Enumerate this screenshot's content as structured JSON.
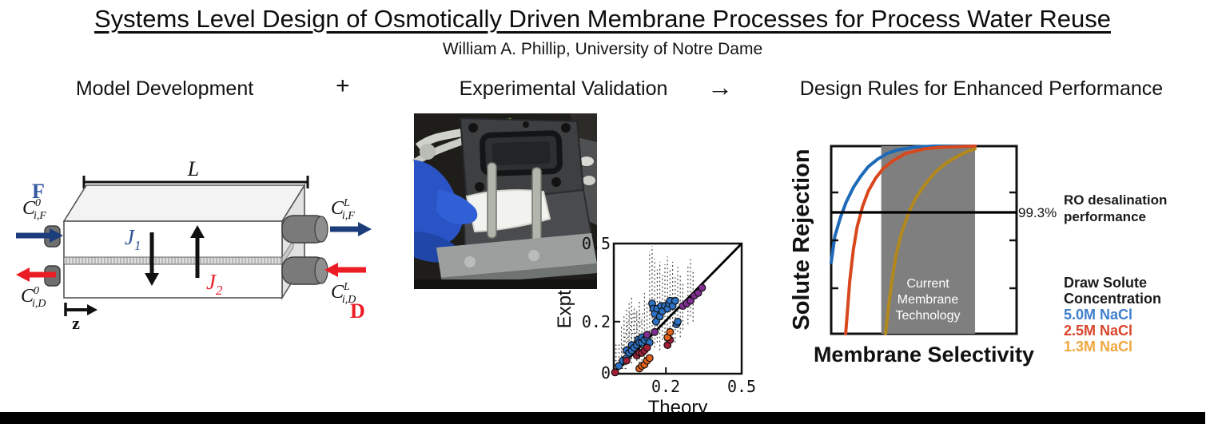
{
  "header": {
    "title": "Systems Level Design of Osmotically Driven Membrane Processes for Process Water Reuse",
    "subtitle": "William A. Phillip, University of Notre Dame"
  },
  "sections": {
    "model": "Model Development",
    "plus": "+",
    "experimental": "Experimental Validation",
    "arrow": "→",
    "design": "Design Rules for Enhanced Performance"
  },
  "module_diagram": {
    "length_label": "L",
    "feed_stream_label": "F",
    "draw_stream_label": "D",
    "axis_label": "z",
    "labels": {
      "feed_in": {
        "base": "C",
        "sup": "0",
        "sub": "i,F"
      },
      "feed_out": {
        "base": "C",
        "sup": "L",
        "sub": "i,F"
      },
      "draw_out": {
        "base": "C",
        "sup": "0",
        "sub": "i,D"
      },
      "draw_in": {
        "base": "C",
        "sup": "L",
        "sub": "i,D"
      },
      "water_flux": {
        "base": "J",
        "sub": "1"
      },
      "solute_flux": {
        "base": "J",
        "sub": "2"
      }
    },
    "colors": {
      "feed_arrow": "#1c3d7c",
      "draw_arrow": "#ec1c24",
      "feed_text": "#34579f",
      "flux1_text": "#2f5597",
      "flux2_text": "#e8232c"
    }
  },
  "photo": {
    "colors": {
      "glove": "#2a54c6",
      "cell_block": "#3e3f41",
      "base_plate": "#9ba09f",
      "membrane_sheet": "#f2f3ee"
    }
  },
  "chart_data": [
    {
      "id": "parity_plot",
      "type": "scatter",
      "title": "",
      "xlabel": "Theory",
      "ylabel": "Expt.",
      "xlim": [
        0,
        0.5
      ],
      "ylim": [
        0,
        0.5
      ],
      "xtick_labels": [
        "0.2",
        "0.5"
      ],
      "ytick_labels": [
        "0",
        "0.2",
        "0.5"
      ],
      "xticks": [
        0.2,
        0.5
      ],
      "yticks": [
        0,
        0.2,
        0.5
      ],
      "diagonal": true,
      "grid": false,
      "series": [
        {
          "name": "series-blue",
          "color": "#2d72c5",
          "points": [
            [
              0.02,
              0.03
            ],
            [
              0.035,
              0.05
            ],
            [
              0.05,
              0.06
            ],
            [
              0.05,
              0.09
            ],
            [
              0.06,
              0.08
            ],
            [
              0.07,
              0.09
            ],
            [
              0.07,
              0.11
            ],
            [
              0.08,
              0.1
            ],
            [
              0.09,
              0.11
            ],
            [
              0.095,
              0.13
            ],
            [
              0.1,
              0.12
            ],
            [
              0.11,
              0.12
            ],
            [
              0.11,
              0.14
            ],
            [
              0.12,
              0.13
            ],
            [
              0.13,
              0.14
            ],
            [
              0.14,
              0.12
            ],
            [
              0.15,
              0.27
            ],
            [
              0.155,
              0.25
            ],
            [
              0.16,
              0.23
            ],
            [
              0.165,
              0.2
            ],
            [
              0.17,
              0.25
            ],
            [
              0.18,
              0.22
            ],
            [
              0.185,
              0.26
            ],
            [
              0.19,
              0.24
            ],
            [
              0.2,
              0.26
            ],
            [
              0.21,
              0.25
            ],
            [
              0.215,
              0.27
            ],
            [
              0.22,
              0.28
            ],
            [
              0.23,
              0.26
            ],
            [
              0.24,
              0.28
            ],
            [
              0.245,
              0.19
            ],
            [
              0.25,
              0.2
            ]
          ]
        },
        {
          "name": "series-purple",
          "color": "#7f2d90",
          "points": [
            [
              0.13,
              0.15
            ],
            [
              0.16,
              0.16
            ],
            [
              0.27,
              0.26
            ],
            [
              0.285,
              0.27
            ],
            [
              0.3,
              0.28
            ],
            [
              0.315,
              0.3
            ],
            [
              0.33,
              0.31
            ],
            [
              0.345,
              0.33
            ]
          ]
        },
        {
          "name": "series-darkred",
          "color": "#a31f38",
          "points": [
            [
              0.005,
              0.005
            ],
            [
              0.05,
              0.05
            ],
            [
              0.09,
              0.07
            ],
            [
              0.1,
              0.08
            ],
            [
              0.11,
              0.08
            ],
            [
              0.12,
              0.09
            ],
            [
              0.13,
              0.1
            ],
            [
              0.21,
              0.11
            ],
            [
              0.22,
              0.13
            ]
          ]
        },
        {
          "name": "series-orange",
          "color": "#e2621b",
          "points": [
            [
              0.1,
              0.02
            ],
            [
              0.11,
              0.03
            ],
            [
              0.12,
              0.035
            ],
            [
              0.13,
              0.05
            ],
            [
              0.14,
              0.06
            ],
            [
              0.21,
              0.14
            ],
            [
              0.22,
              0.16
            ]
          ]
        }
      ],
      "error_bars": {
        "color": "#4a4a4a",
        "v_segments": [
          [
            0.03,
            0.02,
            0.18
          ],
          [
            0.04,
            0.03,
            0.22
          ],
          [
            0.05,
            0.04,
            0.25
          ],
          [
            0.06,
            0.05,
            0.28
          ],
          [
            0.07,
            0.04,
            0.3
          ],
          [
            0.08,
            0.06,
            0.26
          ],
          [
            0.09,
            0.05,
            0.24
          ],
          [
            0.1,
            0.04,
            0.28
          ],
          [
            0.11,
            0.05,
            0.22
          ],
          [
            0.12,
            0.06,
            0.31
          ],
          [
            0.13,
            0.05,
            0.27
          ],
          [
            0.14,
            0.1,
            0.47
          ],
          [
            0.15,
            0.12,
            0.49
          ],
          [
            0.16,
            0.1,
            0.44
          ],
          [
            0.17,
            0.12,
            0.4
          ],
          [
            0.18,
            0.09,
            0.43
          ],
          [
            0.19,
            0.13,
            0.38
          ],
          [
            0.2,
            0.11,
            0.42
          ],
          [
            0.21,
            0.14,
            0.45
          ],
          [
            0.22,
            0.1,
            0.4
          ],
          [
            0.23,
            0.15,
            0.43
          ],
          [
            0.24,
            0.12,
            0.37
          ],
          [
            0.25,
            0.16,
            0.41
          ],
          [
            0.26,
            0.14,
            0.38
          ],
          [
            0.27,
            0.17,
            0.35
          ],
          [
            0.29,
            0.19,
            0.42
          ],
          [
            0.3,
            0.22,
            0.44
          ],
          [
            0.31,
            0.2,
            0.4
          ]
        ],
        "h_segments": [
          [
            0.005,
            0.05,
            0.02
          ],
          [
            0.005,
            0.05,
            0.035
          ],
          [
            0.005,
            0.05,
            0.05
          ],
          [
            0.005,
            0.05,
            0.065
          ],
          [
            0.005,
            0.045,
            0.08
          ],
          [
            0.005,
            0.045,
            0.095
          ],
          [
            0.005,
            0.04,
            0.11
          ],
          [
            0.04,
            0.095,
            0.125
          ],
          [
            0.04,
            0.095,
            0.14
          ],
          [
            0.045,
            0.1,
            0.155
          ],
          [
            0.05,
            0.1,
            0.17
          ],
          [
            0.05,
            0.105,
            0.185
          ],
          [
            0.055,
            0.11,
            0.2
          ],
          [
            0.06,
            0.11,
            0.215
          ],
          [
            0.06,
            0.115,
            0.23
          ]
        ]
      }
    },
    {
      "id": "design_rules",
      "type": "line",
      "xlabel": "Membrane Selectivity",
      "ylabel": "Solute Rejection",
      "grid": false,
      "band": {
        "label": "Current Membrane Technology",
        "label_lines": [
          "Current",
          "Membrane",
          "Technology"
        ],
        "x_start": 0.27,
        "x_end": 0.776,
        "color": "#7f7f7f"
      },
      "threshold": {
        "value_label": "99.3%",
        "y": 0.647,
        "annotation": "RO desalination performance"
      },
      "legend": {
        "title": "Draw Solute Concentration",
        "entries": [
          {
            "label": "5.0M NaCl",
            "color": "#3f7ecb"
          },
          {
            "label": "2.5M NaCl",
            "color": "#d9452c"
          },
          {
            "label": "1.3M NaCl",
            "color": "#efa73e"
          }
        ]
      },
      "series": [
        {
          "name": "5.0M NaCl",
          "color": "#1d6ab8",
          "points": [
            [
              0,
              0.38
            ],
            [
              0.02,
              0.52
            ],
            [
              0.05,
              0.62
            ],
            [
              0.08,
              0.7
            ],
            [
              0.12,
              0.78
            ],
            [
              0.16,
              0.84
            ],
            [
              0.2,
              0.89
            ],
            [
              0.25,
              0.93
            ],
            [
              0.3,
              0.96
            ],
            [
              0.36,
              0.98
            ],
            [
              0.45,
              0.995
            ],
            [
              0.55,
              1.0
            ],
            [
              0.776,
              1.0
            ]
          ]
        },
        {
          "name": "2.5M NaCl",
          "color": "#d8481d",
          "points": [
            [
              0.078,
              0
            ],
            [
              0.09,
              0.15
            ],
            [
              0.1,
              0.28
            ],
            [
              0.12,
              0.45
            ],
            [
              0.14,
              0.57
            ],
            [
              0.17,
              0.68
            ],
            [
              0.2,
              0.76
            ],
            [
              0.24,
              0.83
            ],
            [
              0.28,
              0.88
            ],
            [
              0.33,
              0.92
            ],
            [
              0.4,
              0.96
            ],
            [
              0.5,
              0.985
            ],
            [
              0.6,
              0.995
            ],
            [
              0.776,
              1.0
            ]
          ]
        },
        {
          "name": "1.3M NaCl",
          "color": "#b3881c",
          "points": [
            [
              0.293,
              0
            ],
            [
              0.31,
              0.15
            ],
            [
              0.33,
              0.3
            ],
            [
              0.35,
              0.42
            ],
            [
              0.38,
              0.54
            ],
            [
              0.42,
              0.65
            ],
            [
              0.46,
              0.73
            ],
            [
              0.51,
              0.8
            ],
            [
              0.56,
              0.86
            ],
            [
              0.62,
              0.91
            ],
            [
              0.68,
              0.945
            ],
            [
              0.73,
              0.97
            ],
            [
              0.776,
              0.985
            ]
          ]
        }
      ]
    }
  ]
}
